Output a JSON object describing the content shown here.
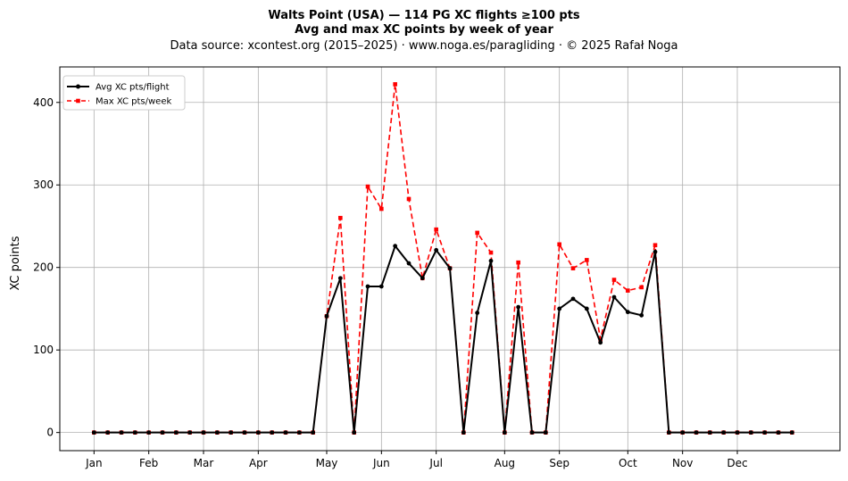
{
  "chart_data": {
    "type": "line",
    "title": "Walts Point (USA)  —  114 PG XC flights ≥100 pts",
    "title_line2": "Avg and max XC points by week of year",
    "subtitle": "Data source: xcontest.org (2015–2025)  ·  www.noga.es/paragliding  ·  © 2025 Rafał Noga",
    "xlabel": "",
    "ylabel": "XC points",
    "xlim": [
      -2.5,
      54.5
    ],
    "ylim": [
      -22,
      443
    ],
    "grid": true,
    "legend_position": "top-left",
    "x_ticks": [
      {
        "label": "Jan",
        "x": 0
      },
      {
        "label": "Feb",
        "x": 4
      },
      {
        "label": "Mar",
        "x": 8
      },
      {
        "label": "Apr",
        "x": 12
      },
      {
        "label": "May",
        "x": 17
      },
      {
        "label": "Jun",
        "x": 21
      },
      {
        "label": "Jul",
        "x": 25
      },
      {
        "label": "Aug",
        "x": 30
      },
      {
        "label": "Sep",
        "x": 34
      },
      {
        "label": "Oct",
        "x": 39
      },
      {
        "label": "Nov",
        "x": 43
      },
      {
        "label": "Dec",
        "x": 47
      }
    ],
    "y_ticks": [
      0,
      100,
      200,
      300,
      400
    ],
    "x": [
      0,
      1,
      2,
      3,
      4,
      5,
      6,
      7,
      8,
      9,
      10,
      11,
      12,
      13,
      14,
      15,
      16,
      17,
      18,
      19,
      20,
      21,
      22,
      23,
      24,
      25,
      26,
      27,
      28,
      29,
      30,
      31,
      32,
      33,
      34,
      35,
      36,
      37,
      38,
      39,
      40,
      41,
      42,
      43,
      44,
      45,
      46,
      47,
      48,
      49,
      50,
      51
    ],
    "series": [
      {
        "name": "Avg XC pts/flight",
        "color": "#000000",
        "style": "solid",
        "marker": "circle",
        "values": [
          0,
          0,
          0,
          0,
          0,
          0,
          0,
          0,
          0,
          0,
          0,
          0,
          0,
          0,
          0,
          0,
          0,
          141,
          187,
          0,
          177,
          177,
          226,
          205,
          187,
          221,
          199,
          0,
          145,
          208,
          0,
          152,
          0,
          0,
          150,
          162,
          150,
          109,
          164,
          146,
          142,
          219,
          0,
          0,
          0,
          0,
          0,
          0,
          0,
          0,
          0,
          0
        ]
      },
      {
        "name": "Max XC pts/week",
        "color": "#ff0000",
        "style": "dashed",
        "marker": "square",
        "values": [
          0,
          0,
          0,
          0,
          0,
          0,
          0,
          0,
          0,
          0,
          0,
          0,
          0,
          0,
          0,
          0,
          0,
          141,
          260,
          0,
          298,
          271,
          422,
          283,
          187,
          246,
          199,
          0,
          242,
          218,
          0,
          206,
          0,
          0,
          228,
          199,
          209,
          113,
          185,
          172,
          176,
          227,
          0,
          0,
          0,
          0,
          0,
          0,
          0,
          0,
          0,
          0
        ]
      }
    ]
  }
}
